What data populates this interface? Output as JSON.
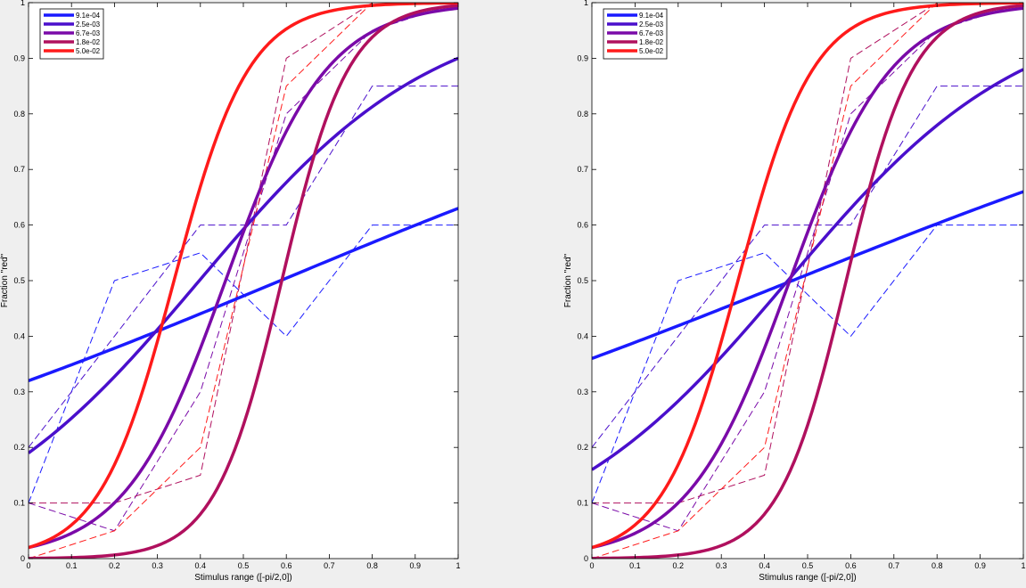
{
  "chart_data": [
    {
      "type": "line",
      "xlabel": "Stimulus range ([-pi/2,0])",
      "ylabel": "Fraction \"red\"",
      "xlim": [
        0,
        1
      ],
      "ylim": [
        0,
        1
      ],
      "xticks": [
        "0",
        "0.1",
        "0.2",
        "0.3",
        "0.4",
        "0.5",
        "0.6",
        "0.7",
        "0.8",
        "0.9",
        "1"
      ],
      "yticks": [
        "0",
        "0.1",
        "0.2",
        "0.3",
        "0.4",
        "0.5",
        "0.6",
        "0.7",
        "0.8",
        "0.9",
        "1"
      ],
      "grid": false,
      "legend_placement": "top-left",
      "x_data": [
        0,
        0.2,
        0.4,
        0.6,
        0.8,
        1.0
      ],
      "series": [
        {
          "name": "9.1e-04",
          "color": "#1a1aff",
          "fit_endpoints": [
            0.32,
            0.63
          ],
          "data": [
            0.1,
            0.5,
            0.55,
            0.4,
            0.6,
            0.6
          ]
        },
        {
          "name": "2.5e-03",
          "color": "#4a0fcc",
          "fit_endpoints": [
            0.19,
            0.9
          ],
          "data": [
            0.2,
            0.4,
            0.6,
            0.6,
            0.85,
            0.85
          ]
        },
        {
          "name": "6.7e-03",
          "color": "#7a0aa8",
          "fit_endpoints": [
            0.02,
            0.99
          ],
          "data": [
            0.1,
            0.05,
            0.3,
            0.8,
            0.95,
            1.0
          ]
        },
        {
          "name": "1.8e-02",
          "color": "#b0105e",
          "fit_endpoints": [
            0.0,
            0.995
          ],
          "data": [
            0.1,
            0.1,
            0.15,
            0.9,
            1.0,
            1.0
          ]
        },
        {
          "name": "5.0e-02",
          "color": "#ff1a1a",
          "fit_endpoints": [
            0.02,
            1.0
          ],
          "data": [
            0.0,
            0.05,
            0.2,
            0.85,
            1.0,
            1.0
          ]
        }
      ]
    },
    {
      "type": "line",
      "xlabel": "Stimulus range ([-pi/2,0])",
      "ylabel": "Fraction \"red\"",
      "xlim": [
        0,
        1
      ],
      "ylim": [
        0,
        1
      ],
      "xticks": [
        "0",
        "0.1",
        "0.2",
        "0.3",
        "0.4",
        "0.5",
        "0.6",
        "0.7",
        "0.8",
        "0.9",
        "1"
      ],
      "yticks": [
        "0",
        "0.1",
        "0.2",
        "0.3",
        "0.4",
        "0.5",
        "0.6",
        "0.7",
        "0.8",
        "0.9",
        "1"
      ],
      "grid": false,
      "legend_placement": "top-left",
      "x_data": [
        0,
        0.2,
        0.4,
        0.6,
        0.8,
        1.0
      ],
      "series": [
        {
          "name": "9.1e-04",
          "color": "#1a1aff",
          "fit_endpoints": [
            0.36,
            0.66
          ],
          "data": [
            0.1,
            0.5,
            0.55,
            0.4,
            0.6,
            0.6
          ]
        },
        {
          "name": "2.5e-03",
          "color": "#4a0fcc",
          "fit_endpoints": [
            0.16,
            0.88
          ],
          "data": [
            0.2,
            0.4,
            0.6,
            0.6,
            0.85,
            0.85
          ]
        },
        {
          "name": "6.7e-03",
          "color": "#7a0aa8",
          "fit_endpoints": [
            0.02,
            0.99
          ],
          "data": [
            0.1,
            0.05,
            0.3,
            0.8,
            0.95,
            1.0
          ]
        },
        {
          "name": "1.8e-02",
          "color": "#b0105e",
          "fit_endpoints": [
            0.0,
            0.995
          ],
          "data": [
            0.1,
            0.1,
            0.15,
            0.9,
            1.0,
            1.0
          ]
        },
        {
          "name": "5.0e-02",
          "color": "#ff1a1a",
          "fit_endpoints": [
            0.02,
            1.0
          ],
          "data": [
            0.0,
            0.05,
            0.2,
            0.85,
            1.0,
            1.0
          ]
        }
      ]
    }
  ]
}
